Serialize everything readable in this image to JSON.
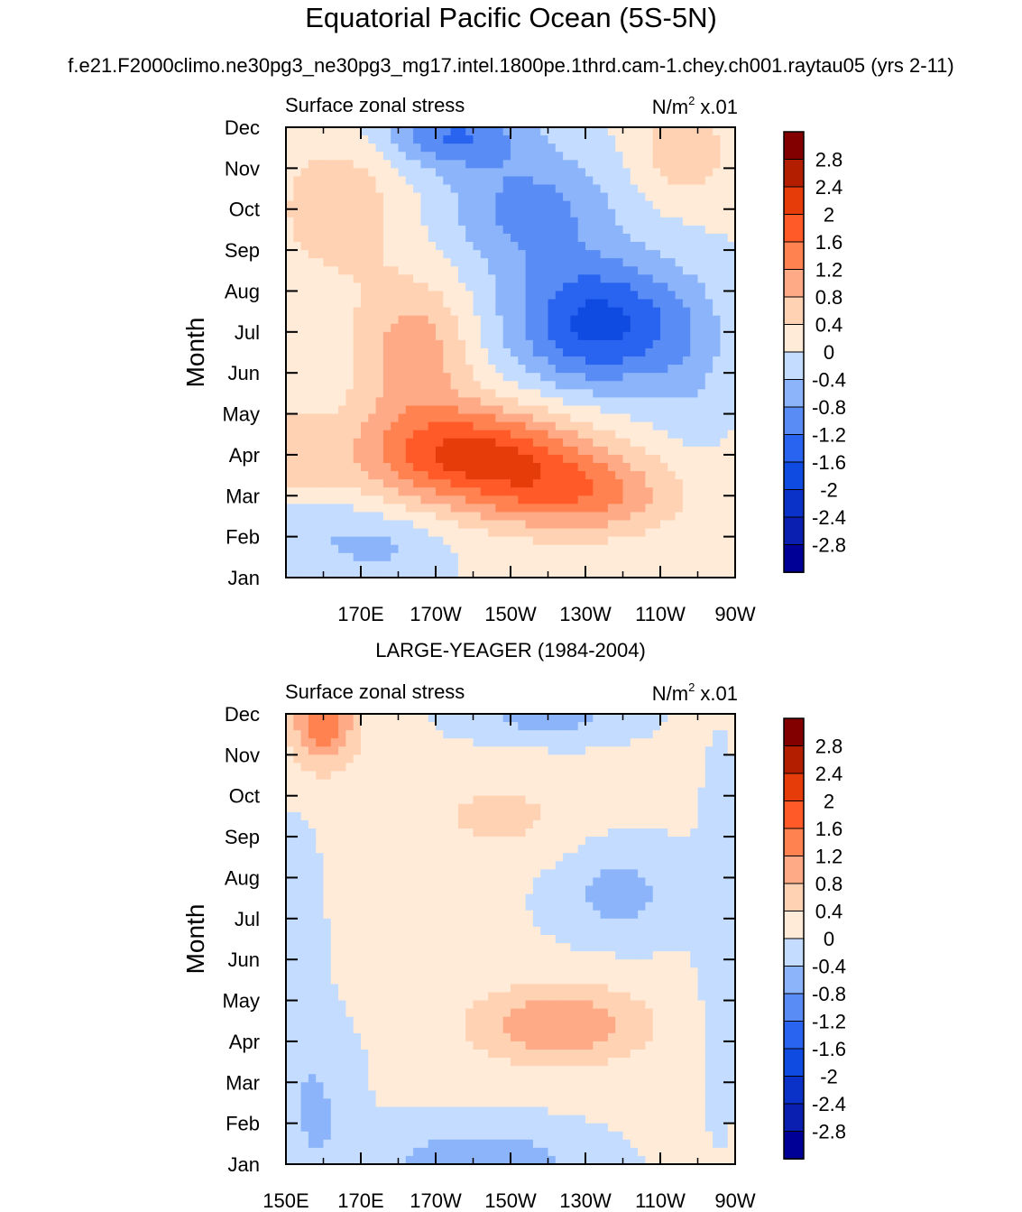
{
  "title": "Equatorial Pacific Ocean (5S-5N)",
  "case_name": "f.e21.F2000climo.ne30pg3_ne30pg3_mg17.intel.1800pe.1thrd.cam-1.chey.ch001.raytau05 (yrs 2-11)",
  "chart_data": [
    {
      "type": "heatmap",
      "panel_title": "",
      "left_string": "Surface zonal stress",
      "right_string_base": "N/m",
      "right_string_sup": "2",
      "right_string_tail": " x.01",
      "ylabel": "Month",
      "x_tick_labels": [
        "170E",
        "170W",
        "150W",
        "130W",
        "110W",
        "90W"
      ],
      "y_tick_labels": [
        "Jan",
        "Feb",
        "Mar",
        "Apr",
        "May",
        "Jun",
        "Jul",
        "Aug",
        "Sep",
        "Oct",
        "Nov",
        "Dec"
      ],
      "xlim": [
        150,
        270
      ],
      "x_units": "degrees east longitude",
      "colorbar_labels": [
        "2.8",
        "2.4",
        "2",
        "1.6",
        "1.2",
        "0.8",
        "0.4",
        "0",
        "-0.4",
        "-0.8",
        "-1.2",
        "-1.6",
        "-2",
        "-2.4",
        "-2.8"
      ],
      "levels": [
        -2.8,
        -2.4,
        -2.0,
        -1.6,
        -1.2,
        -0.8,
        -0.4,
        0,
        0.4,
        0.8,
        1.2,
        1.6,
        2.0,
        2.4,
        2.8
      ],
      "features": [
        {
          "lon": 160,
          "month": 2.0,
          "amp": -0.4,
          "sx": 25,
          "sy": 1.0
        },
        {
          "lon": 178,
          "month": 1.7,
          "amp": -0.3,
          "sx": 14,
          "sy": 0.8
        },
        {
          "lon": 151,
          "month": 4.0,
          "amp": 0.6,
          "sx": 11,
          "sy": 1.0
        },
        {
          "lon": 200,
          "month": 4.0,
          "amp": 2.0,
          "sx": 30,
          "sy": 1.2
        },
        {
          "lon": 228,
          "month": 3.0,
          "amp": 1.2,
          "sx": 26,
          "sy": 1.0
        },
        {
          "lon": 184,
          "month": 6.5,
          "amp": 1.0,
          "sx": 16,
          "sy": 1.8
        },
        {
          "lon": 234,
          "month": 7.2,
          "amp": -1.8,
          "sx": 24,
          "sy": 1.6
        },
        {
          "lon": 215,
          "month": 10.0,
          "amp": -1.0,
          "sx": 22,
          "sy": 1.5
        },
        {
          "lon": 195,
          "month": 11.8,
          "amp": -1.2,
          "sx": 18,
          "sy": 0.8
        },
        {
          "lon": 164,
          "month": 10.0,
          "amp": 0.7,
          "sx": 16,
          "sy": 1.6
        },
        {
          "lon": 256,
          "month": 11.4,
          "amp": 0.7,
          "sx": 12,
          "sy": 1.1
        },
        {
          "lon": 258,
          "month": 6.0,
          "amp": -0.3,
          "sx": 10,
          "sy": 2.0
        }
      ]
    },
    {
      "type": "heatmap",
      "panel_title": "LARGE-YEAGER (1984-2004)",
      "left_string": "Surface zonal stress",
      "right_string_base": "N/m",
      "right_string_sup": "2",
      "right_string_tail": " x.01",
      "ylabel": "Month",
      "x_tick_labels": [
        "150E",
        "170E",
        "170W",
        "150W",
        "130W",
        "110W",
        "90W"
      ],
      "y_tick_labels": [
        "Jan",
        "Feb",
        "Mar",
        "Apr",
        "May",
        "Jun",
        "Jul",
        "Aug",
        "Sep",
        "Oct",
        "Nov",
        "Dec"
      ],
      "xlim": [
        150,
        270
      ],
      "x_units": "degrees east longitude",
      "colorbar_labels": [
        "2.8",
        "2.4",
        "2",
        "1.6",
        "1.2",
        "0.8",
        "0.4",
        "0",
        "-0.4",
        "-0.8",
        "-1.2",
        "-1.6",
        "-2",
        "-2.4",
        "-2.8"
      ],
      "levels": [
        -2.8,
        -2.4,
        -2.0,
        -1.6,
        -1.2,
        -0.8,
        -0.4,
        0,
        0.4,
        0.8,
        1.2,
        1.6,
        2.0,
        2.4,
        2.8
      ],
      "features": [
        {
          "lon": 160,
          "month": 11.9,
          "amp": 1.5,
          "sx": 9,
          "sy": 1.2
        },
        {
          "lon": 158,
          "month": 2.3,
          "amp": -0.5,
          "sx": 10,
          "sy": 2.0
        },
        {
          "lon": 202,
          "month": 1.0,
          "amp": -0.8,
          "sx": 26,
          "sy": 0.9
        },
        {
          "lon": 153,
          "month": 6.5,
          "amp": -0.3,
          "sx": 6,
          "sy": 2.5
        },
        {
          "lon": 223,
          "month": 4.4,
          "amp": 1.1,
          "sx": 24,
          "sy": 1.0
        },
        {
          "lon": 207,
          "month": 9.5,
          "amp": 0.5,
          "sx": 18,
          "sy": 1.0
        },
        {
          "lon": 239,
          "month": 7.6,
          "amp": -0.6,
          "sx": 16,
          "sy": 1.1
        },
        {
          "lon": 220,
          "month": 12.0,
          "amp": -0.7,
          "sx": 20,
          "sy": 0.6
        },
        {
          "lon": 266,
          "month": 6.5,
          "amp": -0.4,
          "sx": 5,
          "sy": 3.5
        }
      ]
    }
  ]
}
